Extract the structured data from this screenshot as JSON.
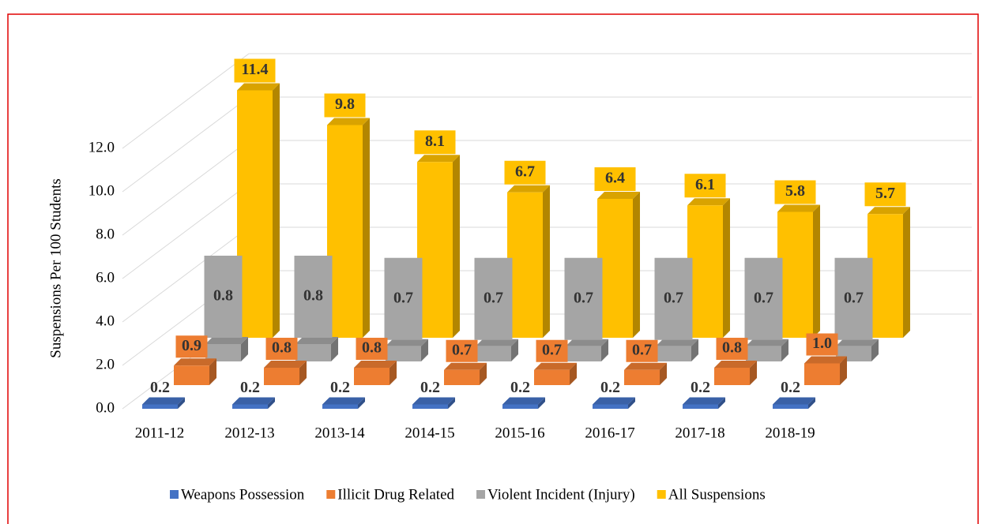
{
  "chart_data": {
    "type": "bar3d",
    "y_label": "Suspensions Per 100 Students",
    "categories": [
      "2011-12",
      "2012-13",
      "2013-14",
      "2014-15",
      "2015-16",
      "2016-17",
      "2017-18",
      "2018-19"
    ],
    "series": [
      {
        "name": "Weapons Possession",
        "color": "#4472c4",
        "values": [
          0.2,
          0.2,
          0.2,
          0.2,
          0.2,
          0.2,
          0.2,
          0.2
        ],
        "value_labels": [
          "0.2",
          "0.2",
          "0.2",
          "0.2",
          "0.2",
          "0.2",
          "0.2",
          "0.2"
        ]
      },
      {
        "name": "Illicit Drug Related",
        "color": "#ed7d31",
        "values": [
          0.9,
          0.8,
          0.8,
          0.7,
          0.7,
          0.7,
          0.8,
          1.0
        ],
        "value_labels": [
          "0.9",
          "0.8",
          "0.8",
          "0.7",
          "0.7",
          "0.7",
          "0.8",
          "1.0"
        ]
      },
      {
        "name": "Violent Incident (Injury)",
        "color": "#a5a5a5",
        "values": [
          0.8,
          0.8,
          0.7,
          0.7,
          0.7,
          0.7,
          0.7,
          0.7
        ],
        "value_labels": [
          "0.8",
          "0.8",
          "0.7",
          "0.7",
          "0.7",
          "0.7",
          "0.7",
          "0.7"
        ]
      },
      {
        "name": "All Suspensions",
        "color": "#ffc000",
        "values": [
          11.4,
          9.8,
          8.1,
          6.7,
          6.4,
          6.1,
          5.8,
          5.7
        ],
        "value_labels": [
          "11.4",
          "9.8",
          "8.1",
          "6.7",
          "6.4",
          "6.1",
          "5.8",
          "5.7"
        ]
      }
    ],
    "ylim": [
      0,
      16
    ],
    "yticks": [
      {
        "value": 0,
        "label": "0.0"
      },
      {
        "value": 2,
        "label": "2.0"
      },
      {
        "value": 4,
        "label": "4.0"
      },
      {
        "value": 6,
        "label": "6.0"
      },
      {
        "value": 8,
        "label": "8.0"
      },
      {
        "value": 10,
        "label": "10.0"
      },
      {
        "value": 12,
        "label": "12.0"
      }
    ],
    "grid": true,
    "legend": "bottom"
  }
}
